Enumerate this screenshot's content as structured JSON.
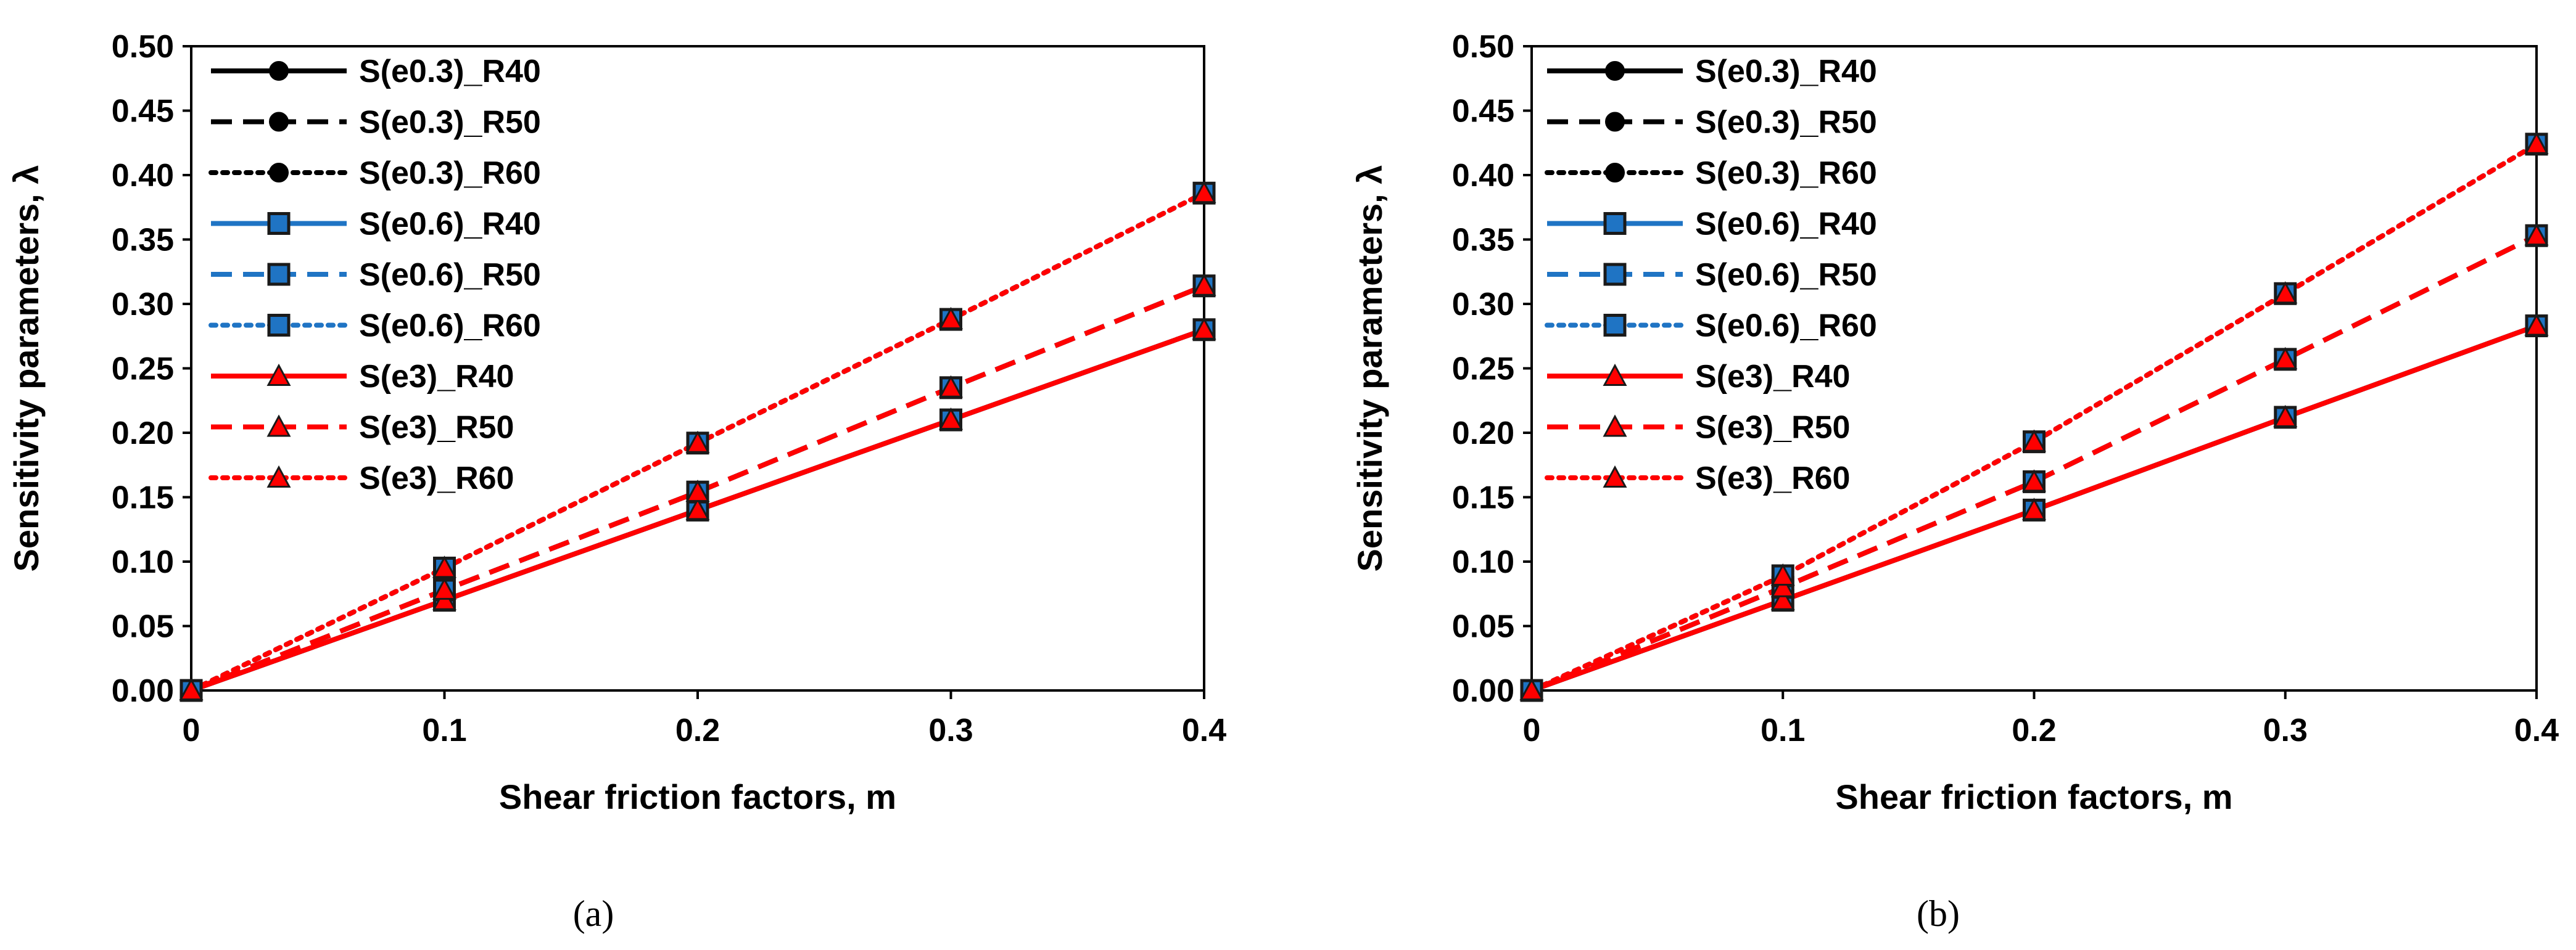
{
  "figure": {
    "panels": [
      {
        "caption": "(a)"
      },
      {
        "caption": "(b)"
      }
    ]
  },
  "chart_data": [
    {
      "type": "line",
      "panel": "(a)",
      "title": "",
      "xlabel": "Shear friction factors, m",
      "ylabel": "Sensitivity parameters, λ",
      "xlim": [
        0,
        0.4
      ],
      "ylim": [
        0,
        0.5
      ],
      "xticks": [
        "0",
        "0.1",
        "0.2",
        "0.3",
        "0.4"
      ],
      "yticks": [
        "0.00",
        "0.05",
        "0.10",
        "0.15",
        "0.20",
        "0.25",
        "0.30",
        "0.35",
        "0.40",
        "0.45",
        "0.50"
      ],
      "legend_position": "top-left",
      "x": [
        0,
        0.1,
        0.2,
        0.3,
        0.4
      ],
      "series": [
        {
          "name": "S(e0.3)_R40",
          "color": "#000000",
          "line": "solid",
          "marker": "circle",
          "values": [
            0,
            0.07,
            0.14,
            0.21,
            0.28
          ]
        },
        {
          "name": "S(e0.3)_R50",
          "color": "#000000",
          "line": "dashed",
          "marker": "circle",
          "values": [
            0,
            0.078,
            0.154,
            0.235,
            0.314
          ]
        },
        {
          "name": "S(e0.3)_R60",
          "color": "#000000",
          "line": "dotted",
          "marker": "circle",
          "values": [
            0,
            0.095,
            0.192,
            0.288,
            0.386
          ]
        },
        {
          "name": "S(e0.6)_R40",
          "color": "#1F74C4",
          "line": "solid",
          "marker": "square",
          "values": [
            0,
            0.07,
            0.14,
            0.21,
            0.28
          ]
        },
        {
          "name": "S(e0.6)_R50",
          "color": "#1F74C4",
          "line": "dashed",
          "marker": "square",
          "values": [
            0,
            0.078,
            0.154,
            0.235,
            0.314
          ]
        },
        {
          "name": "S(e0.6)_R60",
          "color": "#1F74C4",
          "line": "dotted",
          "marker": "square",
          "values": [
            0,
            0.095,
            0.192,
            0.288,
            0.386
          ]
        },
        {
          "name": "S(e3)_R40",
          "color": "#FF0000",
          "line": "solid",
          "marker": "triangle",
          "values": [
            0,
            0.07,
            0.14,
            0.21,
            0.28
          ]
        },
        {
          "name": "S(e3)_R50",
          "color": "#FF0000",
          "line": "dashed",
          "marker": "triangle",
          "values": [
            0,
            0.078,
            0.154,
            0.235,
            0.314
          ]
        },
        {
          "name": "S(e3)_R60",
          "color": "#FF0000",
          "line": "dotted",
          "marker": "triangle",
          "values": [
            0,
            0.095,
            0.192,
            0.288,
            0.386
          ]
        }
      ]
    },
    {
      "type": "line",
      "panel": "(b)",
      "title": "",
      "xlabel": "Shear friction factors, m",
      "ylabel": "Sensitivity parameters, λ",
      "xlim": [
        0,
        0.4
      ],
      "ylim": [
        0,
        0.5
      ],
      "xticks": [
        "0",
        "0.1",
        "0.2",
        "0.3",
        "0.4"
      ],
      "yticks": [
        "0.00",
        "0.05",
        "0.10",
        "0.15",
        "0.20",
        "0.25",
        "0.30",
        "0.35",
        "0.40",
        "0.45",
        "0.50"
      ],
      "legend_position": "top-left",
      "x": [
        0,
        0.1,
        0.2,
        0.3,
        0.4
      ],
      "series": [
        {
          "name": "S(e0.3)_R40",
          "color": "#000000",
          "line": "solid",
          "marker": "circle",
          "values": [
            0,
            0.07,
            0.14,
            0.212,
            0.283
          ]
        },
        {
          "name": "S(e0.3)_R50",
          "color": "#000000",
          "line": "dashed",
          "marker": "circle",
          "values": [
            0,
            0.08,
            0.162,
            0.257,
            0.353
          ]
        },
        {
          "name": "S(e0.3)_R60",
          "color": "#000000",
          "line": "dotted",
          "marker": "circle",
          "values": [
            0,
            0.089,
            0.193,
            0.308,
            0.424
          ]
        },
        {
          "name": "S(e0.6)_R40",
          "color": "#1F74C4",
          "line": "solid",
          "marker": "square",
          "values": [
            0,
            0.07,
            0.14,
            0.212,
            0.283
          ]
        },
        {
          "name": "S(e0.6)_R50",
          "color": "#1F74C4",
          "line": "dashed",
          "marker": "square",
          "values": [
            0,
            0.08,
            0.162,
            0.257,
            0.353
          ]
        },
        {
          "name": "S(e0.6)_R60",
          "color": "#1F74C4",
          "line": "dotted",
          "marker": "square",
          "values": [
            0,
            0.089,
            0.193,
            0.308,
            0.424
          ]
        },
        {
          "name": "S(e3)_R40",
          "color": "#FF0000",
          "line": "solid",
          "marker": "triangle",
          "values": [
            0,
            0.07,
            0.14,
            0.212,
            0.283
          ]
        },
        {
          "name": "S(e3)_R50",
          "color": "#FF0000",
          "line": "dashed",
          "marker": "triangle",
          "values": [
            0,
            0.08,
            0.162,
            0.257,
            0.353
          ]
        },
        {
          "name": "S(e3)_R60",
          "color": "#FF0000",
          "line": "dotted",
          "marker": "triangle",
          "values": [
            0,
            0.089,
            0.193,
            0.308,
            0.424
          ]
        }
      ]
    }
  ]
}
